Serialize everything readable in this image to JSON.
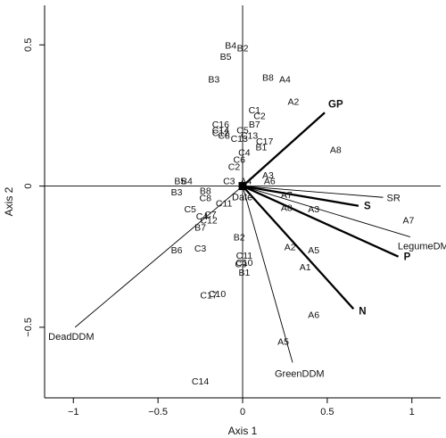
{
  "chart_data": {
    "type": "scatter",
    "title": "",
    "xlabel": "Axis 1",
    "ylabel": "Axis 2",
    "xlim": [
      -1.17,
      1.17
    ],
    "ylim": [
      -0.75,
      0.64
    ],
    "xticks": [
      {
        "v": -1,
        "label": "−1"
      },
      {
        "v": -0.5,
        "label": "−0.5"
      },
      {
        "v": 0,
        "label": "0"
      },
      {
        "v": 0.5,
        "label": "0.5"
      },
      {
        "v": 1,
        "label": "1"
      }
    ],
    "yticks": [
      {
        "v": -0.5,
        "label": "−0.5"
      },
      {
        "v": 0,
        "label": "0"
      },
      {
        "v": 0.5,
        "label": "0.5"
      }
    ],
    "grid": false,
    "reference_lines": {
      "x": 0,
      "y": 0
    },
    "vectors": [
      {
        "name": "GP",
        "x": 0.485,
        "y": 0.26,
        "weight": "bold"
      },
      {
        "name": "S",
        "x": 0.685,
        "y": -0.07,
        "weight": "bold"
      },
      {
        "name": "P",
        "x": 0.92,
        "y": -0.25,
        "weight": "bold"
      },
      {
        "name": "N",
        "x": 0.655,
        "y": -0.435,
        "weight": "bold"
      },
      {
        "name": "SR",
        "x": 0.83,
        "y": -0.04,
        "weight": "normal"
      },
      {
        "name": "LegumeDM",
        "x": 0.99,
        "y": -0.18,
        "weight": "normal"
      },
      {
        "name": "GreenDDM",
        "x": 0.295,
        "y": -0.625,
        "weight": "normal"
      },
      {
        "name": "DeadDDM",
        "x": -0.99,
        "y": -0.5,
        "weight": "normal"
      },
      {
        "name": "Date",
        "x": 0,
        "y": 0,
        "weight": "normal"
      }
    ],
    "points": [
      {
        "label": "B4",
        "x": -0.07,
        "y": 0.5
      },
      {
        "label": "B2",
        "x": 0.0,
        "y": 0.49
      },
      {
        "label": "B5",
        "x": -0.1,
        "y": 0.46
      },
      {
        "label": "B3",
        "x": -0.17,
        "y": 0.38
      },
      {
        "label": "B8",
        "x": 0.15,
        "y": 0.385
      },
      {
        "label": "A4",
        "x": 0.25,
        "y": 0.38
      },
      {
        "label": "A2",
        "x": 0.3,
        "y": 0.3
      },
      {
        "label": "C1",
        "x": 0.07,
        "y": 0.27
      },
      {
        "label": "C2",
        "x": 0.1,
        "y": 0.25
      },
      {
        "label": "C16",
        "x": -0.13,
        "y": 0.22
      },
      {
        "label": "C14",
        "x": -0.13,
        "y": 0.2
      },
      {
        "label": "C12",
        "x": -0.13,
        "y": 0.19
      },
      {
        "label": "B7",
        "x": 0.07,
        "y": 0.22
      },
      {
        "label": "C5",
        "x": 0.0,
        "y": 0.2
      },
      {
        "label": "C8",
        "x": -0.11,
        "y": 0.18
      },
      {
        "label": "C13",
        "x": -0.02,
        "y": 0.17
      },
      {
        "label": "C13",
        "x": 0.04,
        "y": 0.18
      },
      {
        "label": "C17",
        "x": 0.13,
        "y": 0.16
      },
      {
        "label": "B1",
        "x": 0.11,
        "y": 0.14
      },
      {
        "label": "A8",
        "x": 0.55,
        "y": 0.13
      },
      {
        "label": "C4",
        "x": 0.01,
        "y": 0.12
      },
      {
        "label": "C6",
        "x": -0.02,
        "y": 0.095
      },
      {
        "label": "C2",
        "x": -0.05,
        "y": 0.07
      },
      {
        "label": "A3",
        "x": 0.15,
        "y": 0.04
      },
      {
        "label": "C3",
        "x": -0.08,
        "y": 0.02
      },
      {
        "label": "A4",
        "x": 0.02,
        "y": 0.02
      },
      {
        "label": "A6",
        "x": 0.16,
        "y": 0.02
      },
      {
        "label": "B5",
        "x": -0.37,
        "y": 0.02
      },
      {
        "label": "B4",
        "x": -0.33,
        "y": 0.02
      },
      {
        "label": "B3",
        "x": -0.39,
        "y": -0.02
      },
      {
        "label": "B8",
        "x": -0.22,
        "y": -0.015
      },
      {
        "label": "C8",
        "x": -0.22,
        "y": -0.04
      },
      {
        "label": "A7",
        "x": 0.26,
        "y": -0.03
      },
      {
        "label": "C11",
        "x": -0.11,
        "y": -0.06
      },
      {
        "label": "C5",
        "x": -0.31,
        "y": -0.08
      },
      {
        "label": "A3",
        "x": 0.42,
        "y": -0.08
      },
      {
        "label": "A8",
        "x": 0.26,
        "y": -0.075
      },
      {
        "label": "C4",
        "x": -0.24,
        "y": -0.105
      },
      {
        "label": "C7",
        "x": -0.19,
        "y": -0.1
      },
      {
        "label": "C12",
        "x": -0.2,
        "y": -0.12
      },
      {
        "label": "A7",
        "x": 0.98,
        "y": -0.12
      },
      {
        "label": "B7",
        "x": -0.25,
        "y": -0.145
      },
      {
        "label": "B2",
        "x": -0.02,
        "y": -0.18
      },
      {
        "label": "A2",
        "x": 0.28,
        "y": -0.215
      },
      {
        "label": "A5",
        "x": 0.42,
        "y": -0.225
      },
      {
        "label": "B6",
        "x": -0.39,
        "y": -0.225
      },
      {
        "label": "C3",
        "x": -0.25,
        "y": -0.22
      },
      {
        "label": "C11",
        "x": 0.01,
        "y": -0.245
      },
      {
        "label": "C9",
        "x": -0.01,
        "y": -0.275
      },
      {
        "label": "C10",
        "x": 0.01,
        "y": -0.27
      },
      {
        "label": "A1",
        "x": 0.37,
        "y": -0.285
      },
      {
        "label": "B1",
        "x": 0.01,
        "y": -0.305
      },
      {
        "label": "C10",
        "x": -0.15,
        "y": -0.38
      },
      {
        "label": "C17",
        "x": -0.2,
        "y": -0.385
      },
      {
        "label": "A6",
        "x": 0.42,
        "y": -0.455
      },
      {
        "label": "A5",
        "x": 0.24,
        "y": -0.55
      },
      {
        "label": "C14",
        "x": -0.25,
        "y": -0.69
      }
    ]
  }
}
